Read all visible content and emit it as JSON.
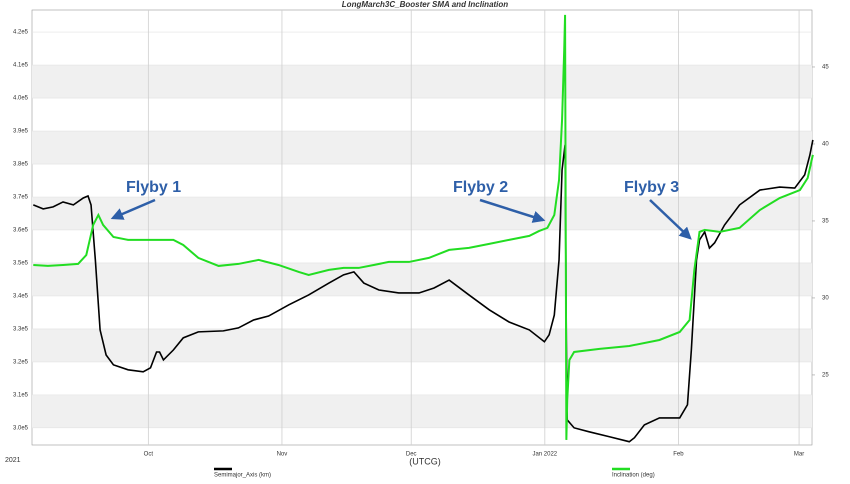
{
  "chart_data": {
    "type": "line",
    "title": "LongMarch3C_Booster SMA and Inclination",
    "x_label": "(UTCG)",
    "year_label": "2021",
    "xlim": [
      247,
      428
    ],
    "xticks": [
      {
        "value": 274,
        "label": "Oct"
      },
      {
        "value": 305,
        "label": "Nov"
      },
      {
        "value": 335,
        "label": "Dec"
      },
      {
        "value": 366,
        "label": "Jan 2022"
      },
      {
        "value": 397,
        "label": "Feb"
      },
      {
        "value": 425,
        "label": "Mar"
      }
    ],
    "ylim": [
      294800,
      426700
    ],
    "yticks": [
      {
        "value": 300000,
        "label": "3.0e5"
      },
      {
        "value": 310000,
        "label": "3.1e5"
      },
      {
        "value": 320000,
        "label": "3.2e5"
      },
      {
        "value": 330000,
        "label": "3.3e5"
      },
      {
        "value": 340000,
        "label": "3.4e5"
      },
      {
        "value": 350000,
        "label": "3.5e5"
      },
      {
        "value": 360000,
        "label": "3.6e5"
      },
      {
        "value": 370000,
        "label": "3.7e5"
      },
      {
        "value": 380000,
        "label": "3.8e5"
      },
      {
        "value": 390000,
        "label": "3.9e5"
      },
      {
        "value": 400000,
        "label": "4.0e5"
      },
      {
        "value": 410000,
        "label": "4.1e5"
      },
      {
        "value": 420000,
        "label": "4.2e5"
      }
    ],
    "y2lim": [
      20.45,
      48.7
    ],
    "y2ticks": [
      25,
      30,
      35,
      40,
      45
    ],
    "grid": true,
    "series": [
      {
        "name": "Semimajor_Axis (km)",
        "color": "#000000",
        "x": [
          247.3,
          249.6,
          251.9,
          254.2,
          256.6,
          258.9,
          260.0,
          260.7,
          261.7,
          262.8,
          264.2,
          265.9,
          269.3,
          272.8,
          274.5,
          275.9,
          276.6,
          277.5,
          279.8,
          282.1,
          285.6,
          291.4,
          294.9,
          298.4,
          301.9,
          306.6,
          311.2,
          315.9,
          319.3,
          321.7,
          324.0,
          327.5,
          332.1,
          336.8,
          340.3,
          343.8,
          348.4,
          353.1,
          357.7,
          362.4,
          365.9,
          367.0,
          368.2,
          369.3,
          370.0,
          370.7,
          371.0,
          371.2,
          372.8,
          376.3,
          381.0,
          385.6,
          386.8,
          389.1,
          392.6,
          397.3,
          399.1,
          400.0,
          401.2,
          401.9,
          403.1,
          404.2,
          405.4,
          407.7,
          411.2,
          415.9,
          420.5,
          424.0,
          426.3,
          427.5,
          428.2
        ],
        "values": [
          367600,
          366400,
          367000,
          368500,
          367600,
          369700,
          370300,
          367600,
          350900,
          329700,
          322100,
          319100,
          317600,
          317000,
          318200,
          323000,
          323000,
          320600,
          323600,
          327300,
          329100,
          329400,
          330300,
          332700,
          333900,
          337300,
          340300,
          343900,
          346400,
          347300,
          343900,
          341800,
          340900,
          340900,
          342400,
          344800,
          340300,
          335800,
          332100,
          329700,
          326100,
          328200,
          334200,
          350900,
          378200,
          385800,
          326700,
          302400,
          300000,
          298800,
          297300,
          295800,
          297000,
          300900,
          303000,
          303000,
          307000,
          323600,
          350900,
          357000,
          359400,
          354500,
          356100,
          361500,
          367600,
          372100,
          373000,
          372700,
          376700,
          382700,
          387300
        ]
      },
      {
        "name": "Inclination (deg)",
        "color": "#22dd22",
        "axis": "y2",
        "x": [
          247.3,
          250.7,
          254.2,
          257.7,
          259.6,
          261.2,
          262.4,
          263.5,
          265.9,
          269.3,
          275.2,
          279.8,
          282.1,
          285.6,
          290.3,
          294.9,
          299.6,
          304.2,
          308.9,
          311.2,
          315.9,
          319.3,
          322.8,
          326.3,
          329.8,
          334.5,
          339.1,
          343.8,
          348.4,
          353.1,
          357.7,
          362.4,
          364.7,
          366.6,
          368.2,
          369.3,
          370.0,
          370.5,
          370.7,
          371.0,
          371.2,
          371.7,
          372.8,
          378.7,
          385.6,
          392.6,
          397.3,
          399.6,
          400.7,
          401.9,
          403.1,
          406.6,
          411.2,
          415.9,
          420.5,
          425.2,
          427.0,
          428.2
        ],
        "values": [
          32.14,
          32.08,
          32.14,
          32.21,
          32.79,
          34.74,
          35.39,
          34.74,
          33.96,
          33.77,
          33.77,
          33.77,
          33.44,
          32.6,
          32.08,
          32.21,
          32.47,
          32.14,
          31.69,
          31.49,
          31.82,
          31.95,
          31.95,
          32.14,
          32.34,
          32.34,
          32.6,
          33.12,
          33.25,
          33.51,
          33.77,
          34.03,
          34.35,
          34.55,
          35.39,
          37.66,
          41.56,
          46.1,
          48.38,
          20.78,
          23.38,
          25.97,
          26.49,
          26.69,
          26.88,
          27.27,
          27.79,
          28.57,
          31.82,
          34.29,
          34.42,
          34.29,
          34.55,
          35.71,
          36.49,
          37.01,
          37.79,
          39.29
        ]
      }
    ],
    "annotations": [
      {
        "text": "Flyby 1"
      },
      {
        "text": "Flyby 2"
      },
      {
        "text": "Flyby 3"
      }
    ]
  }
}
